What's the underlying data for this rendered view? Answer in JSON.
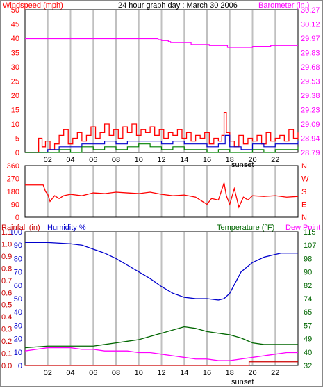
{
  "colors": {
    "wind": "#ff0000",
    "barometer": "#ff00ff",
    "gust_avg": "#0000cc",
    "wind_min": "#008000",
    "humidity": "#0000cc",
    "temperature": "#006600",
    "dewpoint": "#ff00ff",
    "rainfall": "#cc0000",
    "grid": "#c0c0c0",
    "frame": "#000000"
  },
  "header": {
    "left_label": "Windspeed (mph)",
    "title": "24 hour graph day : March 30 2006",
    "right_label": "Barometer (in.)"
  },
  "panel_dir": {
    "right_labels": [
      "N",
      "W",
      "S",
      "E",
      "N"
    ]
  },
  "panel_bottom": {
    "rain_label": "Rainfall (in)",
    "humidity_label": "Humidity %",
    "temp_label": "Temperature (°F)",
    "dew_label": "Dew Point"
  },
  "sunset_label": "sunset",
  "chart_data": [
    {
      "type": "line",
      "id": "wind-baro",
      "x_ticks": [
        "02",
        "04",
        "06",
        "08",
        "10",
        "12",
        "14",
        "16",
        "18",
        "20",
        "22"
      ],
      "xlim": [
        0,
        24
      ],
      "ylabel": "Windspeed (mph)",
      "ylim": [
        0,
        50
      ],
      "y_ticks": [
        "0",
        "5",
        "10",
        "15",
        "20",
        "25",
        "30",
        "35",
        "40",
        "45",
        "50"
      ],
      "y2label": "Barometer (in.)",
      "y2lim": [
        28.79,
        30.27
      ],
      "y2_ticks": [
        "28.79",
        "28.94",
        "29.09",
        "29.23",
        "29.38",
        "29.53",
        "29.68",
        "29.83",
        "29.97",
        "30.12",
        "30.27"
      ],
      "grid": true,
      "sunset_hour": 17.7,
      "series": [
        {
          "name": "Barometer (in.)",
          "x": [
            0,
            11.6,
            11.7,
            12.0,
            12.6,
            12.8,
            13.2,
            14.6,
            16.2,
            17.8,
            20.0,
            21.0,
            21.6,
            22.0,
            24.0
          ],
          "y": [
            29.97,
            29.97,
            29.96,
            29.95,
            29.94,
            29.93,
            29.93,
            29.91,
            29.9,
            29.88,
            29.89,
            29.89,
            29.9,
            29.9,
            29.9
          ]
        },
        {
          "name": "Windspeed (mph)",
          "x": [
            0,
            1.0,
            1.2,
            1.5,
            1.8,
            2.2,
            2.6,
            3.0,
            3.4,
            3.8,
            4.2,
            4.6,
            5.0,
            5.4,
            5.8,
            6.2,
            6.6,
            7.0,
            7.4,
            7.8,
            8.2,
            8.6,
            9.0,
            9.4,
            9.8,
            10.2,
            10.6,
            11.0,
            11.4,
            11.8,
            12.2,
            12.6,
            13.0,
            13.4,
            13.8,
            14.2,
            14.6,
            15.0,
            15.4,
            15.8,
            16.2,
            16.6,
            17.0,
            17.3,
            17.5,
            17.7,
            18.0,
            18.4,
            18.8,
            19.2,
            19.6,
            20.0,
            20.4,
            20.8,
            21.2,
            21.6,
            22.0,
            22.4,
            22.8,
            23.2,
            23.6,
            24.0
          ],
          "y": [
            0,
            0,
            5,
            2,
            4,
            1,
            3,
            6,
            8,
            3,
            5,
            7,
            4,
            6,
            9,
            5,
            7,
            10,
            6,
            8,
            5,
            9,
            7,
            10,
            6,
            8,
            7,
            9,
            6,
            8,
            5,
            7,
            6,
            8,
            5,
            7,
            4,
            6,
            5,
            7,
            3,
            5,
            4,
            6,
            14,
            7,
            4,
            2,
            6,
            3,
            5,
            4,
            6,
            3,
            7,
            4,
            5,
            6,
            4,
            8,
            5,
            7
          ]
        },
        {
          "name": "Average wind",
          "x": [
            0,
            1.0,
            2.0,
            3.0,
            4.0,
            5.0,
            6.0,
            7.0,
            8.0,
            9.0,
            10.0,
            11.0,
            12.0,
            13.0,
            14.0,
            15.0,
            16.0,
            17.0,
            17.6,
            18.0,
            19.0,
            20.0,
            21.0,
            22.0,
            23.0,
            24.0
          ],
          "y": [
            0,
            0,
            1,
            2,
            2,
            3,
            3,
            4,
            3,
            4,
            4,
            4,
            3,
            4,
            3,
            3,
            2,
            3,
            6,
            2,
            1,
            3,
            2,
            3,
            3,
            4
          ]
        },
        {
          "name": "Minimum wind",
          "x": [
            0,
            1.0,
            2.0,
            3.0,
            4.0,
            5.0,
            6.0,
            7.0,
            8.0,
            9.0,
            10.0,
            11.0,
            12.0,
            13.0,
            14.0,
            15.0,
            16.0,
            17.0,
            18.0,
            19.0,
            20.0,
            21.0,
            22.0,
            23.0,
            24.0
          ],
          "y": [
            0,
            0,
            0,
            1,
            0,
            2,
            1,
            2,
            1,
            2,
            3,
            2,
            1,
            2,
            1,
            1,
            0,
            1,
            0,
            0,
            1,
            0,
            1,
            1,
            2
          ]
        }
      ]
    },
    {
      "type": "line",
      "id": "direction",
      "x_ticks": [],
      "xlim": [
        0,
        24
      ],
      "ylim": [
        0,
        360
      ],
      "y_ticks": [
        "0",
        "90",
        "180",
        "270",
        "360"
      ],
      "grid": true,
      "series": [
        {
          "name": "Wind direction",
          "x": [
            0,
            1.6,
            1.8,
            2.0,
            2.2,
            2.6,
            3.0,
            3.4,
            4.0,
            5.0,
            6.0,
            7.0,
            8.0,
            9.0,
            10.0,
            11.0,
            12.0,
            13.0,
            14.0,
            15.0,
            15.6,
            16.0,
            16.4,
            17.0,
            17.5,
            17.7,
            18.0,
            18.4,
            18.8,
            19.2,
            19.6,
            20.0,
            21.0,
            22.0,
            23.0,
            24.0
          ],
          "y": [
            225,
            225,
            180,
            160,
            110,
            150,
            130,
            150,
            160,
            150,
            170,
            165,
            175,
            170,
            165,
            175,
            160,
            150,
            155,
            140,
            110,
            90,
            130,
            120,
            240,
            150,
            90,
            200,
            70,
            140,
            120,
            150,
            145,
            150,
            140,
            145
          ]
        }
      ]
    },
    {
      "type": "line",
      "id": "hum-temp-rain",
      "x_ticks": [
        "02",
        "04",
        "06",
        "08",
        "10",
        "12",
        "14",
        "16",
        "18",
        "20",
        "22"
      ],
      "xlim": [
        0,
        24
      ],
      "ylabel": "Humidity %",
      "ylim": [
        0,
        100
      ],
      "y_ticks": [
        "0",
        "10",
        "20",
        "30",
        "40",
        "50",
        "60",
        "70",
        "80",
        "90",
        "100"
      ],
      "rain_ticks": [
        "0.0",
        "0.1",
        "0.2",
        "0.3",
        "0.4",
        "0.5",
        "0.6",
        "0.7",
        "0.8",
        "0.9",
        "1.0",
        "1.1"
      ],
      "y2label": "Temperature (°F)",
      "y2lim": [
        32,
        115
      ],
      "y2_ticks": [
        "32",
        "40",
        "49",
        "57",
        "65",
        "74",
        "82",
        "90",
        "98",
        "107",
        "115"
      ],
      "grid": true,
      "sunset_hour": 17.7,
      "series": [
        {
          "name": "Humidity %",
          "x": [
            0,
            2.0,
            4.0,
            5.0,
            6.0,
            7.0,
            8.0,
            9.0,
            10.0,
            11.0,
            12.0,
            13.0,
            14.0,
            15.0,
            16.0,
            17.0,
            17.5,
            18.0,
            18.5,
            19.0,
            20.0,
            21.0,
            22.0,
            22.5,
            23.0,
            24.0
          ],
          "y": [
            92,
            92,
            91,
            90,
            87,
            84,
            80,
            75,
            70,
            65,
            59,
            54,
            51,
            50,
            50,
            49,
            50,
            54,
            62,
            70,
            77,
            81,
            83,
            84,
            84,
            84
          ]
        },
        {
          "name": "Temperature (°F)",
          "x": [
            0,
            1.0,
            2.0,
            3.0,
            4.0,
            5.0,
            6.0,
            7.0,
            8.0,
            9.0,
            10.0,
            11.0,
            12.0,
            13.0,
            14.0,
            15.0,
            16.0,
            17.0,
            18.0,
            19.0,
            20.0,
            21.0,
            22.0,
            23.0,
            24.0
          ],
          "y": [
            43,
            43.5,
            44,
            44,
            44,
            44,
            44,
            45,
            46,
            47,
            48,
            50,
            52,
            54,
            56,
            55,
            53,
            52,
            51,
            49,
            46,
            45,
            45,
            45,
            45
          ]
        },
        {
          "name": "Dew Point",
          "x": [
            0,
            1.0,
            2.0,
            3.0,
            4.0,
            5.0,
            6.0,
            7.0,
            8.0,
            9.0,
            10.0,
            11.0,
            12.0,
            13.0,
            14.0,
            15.0,
            16.0,
            17.0,
            18.0,
            19.0,
            20.0,
            21.0,
            22.0,
            23.0,
            24.0
          ],
          "y": [
            41,
            42,
            43,
            43,
            43,
            42,
            42,
            41,
            41,
            41,
            40,
            40,
            39,
            38,
            37,
            36,
            36,
            35,
            35,
            36,
            37,
            38,
            39,
            40,
            40
          ]
        },
        {
          "name": "Rainfall (in)",
          "x": [
            0,
            19.6,
            19.7,
            24.0
          ],
          "y": [
            0,
            0,
            0.03,
            0.03
          ]
        }
      ]
    }
  ]
}
